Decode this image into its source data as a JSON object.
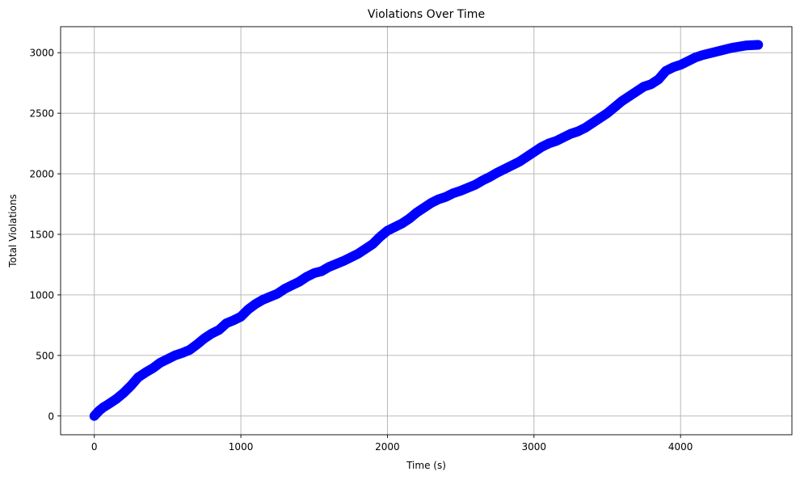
{
  "chart_data": {
    "type": "scatter",
    "title": "Violations Over Time",
    "xlabel": "Time (s)",
    "ylabel": "Total Violations",
    "xlim": [
      -230,
      4760
    ],
    "ylim": [
      -155,
      3215
    ],
    "xticks": [
      0,
      1000,
      2000,
      3000,
      4000
    ],
    "yticks": [
      0,
      500,
      1000,
      1500,
      2000,
      2500,
      3000
    ],
    "grid": true,
    "marker_color": "#0000ff",
    "marker_style": "line-with-circle-markers",
    "series": [
      {
        "x": [
          0,
          30,
          60,
          100,
          150,
          200,
          250,
          300,
          350,
          400,
          450,
          500,
          550,
          600,
          650,
          700,
          750,
          800,
          850,
          900,
          950,
          1000,
          1050,
          1100,
          1150,
          1200,
          1250,
          1300,
          1350,
          1400,
          1450,
          1500,
          1550,
          1600,
          1650,
          1700,
          1750,
          1800,
          1850,
          1900,
          1950,
          2000,
          2050,
          2100,
          2150,
          2200,
          2250,
          2300,
          2350,
          2400,
          2450,
          2500,
          2550,
          2600,
          2650,
          2700,
          2750,
          2800,
          2850,
          2900,
          2950,
          3000,
          3050,
          3100,
          3150,
          3200,
          3250,
          3300,
          3350,
          3400,
          3450,
          3500,
          3550,
          3600,
          3650,
          3700,
          3750,
          3800,
          3850,
          3900,
          3950,
          4000,
          4050,
          4100,
          4150,
          4200,
          4250,
          4300,
          4350,
          4400,
          4450,
          4500,
          4530
        ],
        "y": [
          0,
          40,
          70,
          100,
          140,
          190,
          250,
          320,
          360,
          395,
          440,
          470,
          500,
          520,
          545,
          590,
          640,
          680,
          710,
          765,
          790,
          820,
          880,
          925,
          960,
          985,
          1010,
          1050,
          1080,
          1110,
          1150,
          1180,
          1195,
          1230,
          1255,
          1280,
          1310,
          1340,
          1380,
          1420,
          1480,
          1530,
          1560,
          1590,
          1630,
          1680,
          1720,
          1760,
          1790,
          1810,
          1840,
          1860,
          1885,
          1910,
          1945,
          1975,
          2010,
          2040,
          2070,
          2100,
          2140,
          2180,
          2220,
          2250,
          2270,
          2300,
          2330,
          2350,
          2380,
          2420,
          2460,
          2500,
          2550,
          2600,
          2640,
          2680,
          2720,
          2740,
          2780,
          2850,
          2880,
          2900,
          2930,
          2960,
          2980,
          2995,
          3010,
          3025,
          3040,
          3050,
          3060,
          3063,
          3065
        ]
      }
    ]
  }
}
